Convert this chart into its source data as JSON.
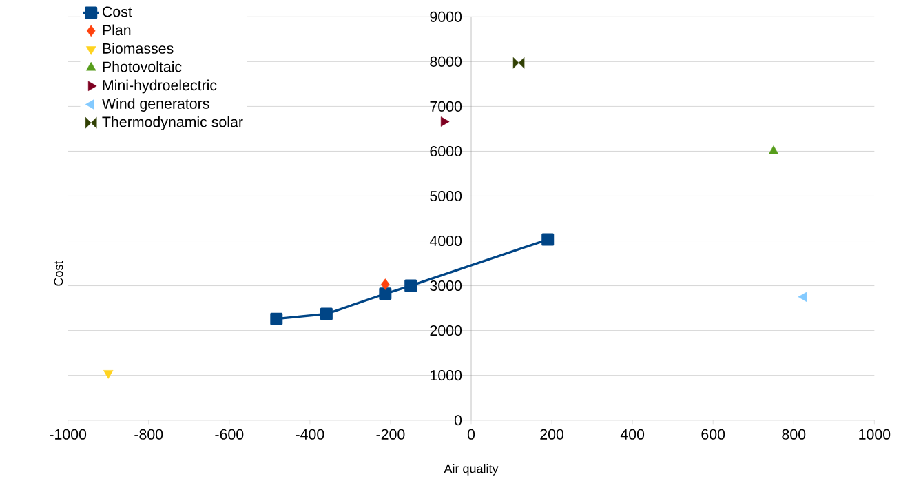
{
  "chart_data": {
    "type": "scatter",
    "xlabel": "Air quality",
    "ylabel": "Cost",
    "xlim": [
      -1000,
      1000
    ],
    "xticks": [
      -1000,
      -800,
      -600,
      -400,
      -200,
      0,
      200,
      400,
      600,
      800,
      1000
    ],
    "ylim": [
      0,
      9000
    ],
    "yticks": [
      0,
      1000,
      2000,
      3000,
      4000,
      5000,
      6000,
      7000,
      8000,
      9000
    ],
    "grid": "y",
    "legend": "top left",
    "series": [
      {
        "name": "Cost",
        "type": "line",
        "color": "#004586",
        "marker": "square",
        "x": [
          -483,
          -359,
          -213,
          -150,
          190
        ],
        "values": [
          2260,
          2370,
          2820,
          3000,
          4030
        ]
      },
      {
        "name": "Plan",
        "color": "#ff420e",
        "marker": "diamond",
        "x": [
          -213
        ],
        "values": [
          3030
        ]
      },
      {
        "name": "Biomasses",
        "color": "#ffd320",
        "marker": "triangle-down",
        "x": [
          -900
        ],
        "values": [
          1050
        ]
      },
      {
        "name": "Photovoltaic",
        "color": "#579d1c",
        "marker": "triangle",
        "x": [
          750
        ],
        "values": [
          6000
        ]
      },
      {
        "name": "Mini-hydroelectric",
        "color": "#7e0021",
        "marker": "triangle-right",
        "x": [
          -68
        ],
        "values": [
          6660
        ]
      },
      {
        "name": "Wind generators",
        "color": "#83caff",
        "marker": "triangle-left",
        "x": [
          825
        ],
        "values": [
          2750
        ]
      },
      {
        "name": "Thermodynamic solar",
        "color": "#314004",
        "x": [
          118
        ],
        "values": [
          7970
        ]
      }
    ]
  }
}
